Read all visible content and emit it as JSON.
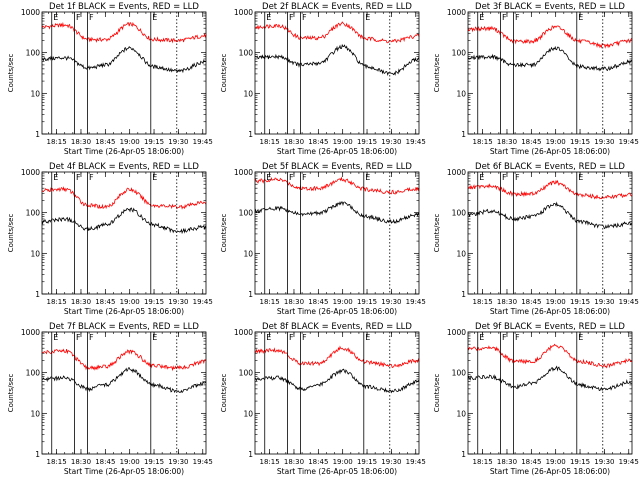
{
  "window": {
    "background": "#ffffff"
  },
  "style": {
    "events_color": "#000000",
    "lld_color": "#ff0000",
    "marker_color": "#000000"
  },
  "chart_data": [
    {
      "type": "line",
      "title": "Det 1f BLACK = Events, RED = LLD",
      "xlabel": "Start Time (26-Apr-05 18:06:00)",
      "ylabel": "Counts/sec",
      "x_ticks": [
        "18:15",
        "18:30",
        "18:45",
        "19:00",
        "19:15",
        "19:30",
        "19:45"
      ],
      "y_ticks": [
        "1",
        "10",
        "100",
        "1000"
      ],
      "y_scale": "log",
      "ylim": [
        1,
        1000
      ],
      "markers": [
        {
          "x": "18:12",
          "label": "E",
          "style": "solid"
        },
        {
          "x": "18:26",
          "label": "F",
          "style": "solid"
        },
        {
          "x": "18:34",
          "label": "F",
          "style": "solid"
        },
        {
          "x": "19:13",
          "label": "E",
          "style": "solid"
        },
        {
          "x": "19:29",
          "label": "",
          "style": "dotted"
        }
      ],
      "series": [
        {
          "name": "LLD",
          "color": "red",
          "x": [
            "18:06",
            "18:20",
            "18:35",
            "18:45",
            "19:00",
            "19:15",
            "19:30",
            "19:47"
          ],
          "values": [
            430,
            480,
            210,
            210,
            500,
            210,
            200,
            260
          ]
        },
        {
          "name": "Events",
          "color": "black",
          "x": [
            "18:06",
            "18:20",
            "18:35",
            "18:45",
            "19:00",
            "19:15",
            "19:30",
            "19:47"
          ],
          "values": [
            70,
            75,
            42,
            50,
            130,
            45,
            35,
            60
          ]
        }
      ]
    },
    {
      "type": "line",
      "title": "Det 2f BLACK = Events, RED = LLD",
      "xlabel": "Start Time (26-Apr-05 18:06:00)",
      "ylabel": "Counts/sec",
      "x_ticks": [
        "18:15",
        "18:30",
        "18:45",
        "19:00",
        "19:15",
        "19:30",
        "19:45"
      ],
      "y_ticks": [
        "1",
        "10",
        "100",
        "1000"
      ],
      "y_scale": "log",
      "ylim": [
        1,
        1000
      ],
      "markers": [
        {
          "x": "18:12",
          "label": "E",
          "style": "solid"
        },
        {
          "x": "18:26",
          "label": "F",
          "style": "solid"
        },
        {
          "x": "18:34",
          "label": "F",
          "style": "solid"
        },
        {
          "x": "19:13",
          "label": "E",
          "style": "solid"
        },
        {
          "x": "19:29",
          "label": "",
          "style": "dotted"
        }
      ],
      "series": [
        {
          "name": "LLD",
          "color": "red",
          "x": [
            "18:06",
            "18:20",
            "18:35",
            "18:45",
            "19:00",
            "19:15",
            "19:30",
            "19:47"
          ],
          "values": [
            420,
            470,
            230,
            230,
            520,
            220,
            190,
            260
          ]
        },
        {
          "name": "Events",
          "color": "black",
          "x": [
            "18:06",
            "18:20",
            "18:35",
            "18:45",
            "19:00",
            "19:15",
            "19:30",
            "19:47"
          ],
          "values": [
            75,
            80,
            50,
            55,
            140,
            45,
            30,
            70
          ]
        }
      ]
    },
    {
      "type": "line",
      "title": "Det 3f BLACK = Events, RED = LLD",
      "xlabel": "Start Time (26-Apr-05 18:06:00)",
      "ylabel": "Counts/sec",
      "x_ticks": [
        "18:15",
        "18:30",
        "18:45",
        "19:00",
        "19:15",
        "19:30",
        "19:45"
      ],
      "y_ticks": [
        "1",
        "10",
        "100",
        "1000"
      ],
      "y_scale": "log",
      "ylim": [
        1,
        1000
      ],
      "markers": [
        {
          "x": "18:12",
          "label": "E",
          "style": "solid"
        },
        {
          "x": "18:26",
          "label": "F",
          "style": "solid"
        },
        {
          "x": "18:34",
          "label": "F",
          "style": "solid"
        },
        {
          "x": "19:13",
          "label": "E",
          "style": "solid"
        },
        {
          "x": "19:29",
          "label": "",
          "style": "dotted"
        }
      ],
      "series": [
        {
          "name": "LLD",
          "color": "red",
          "x": [
            "18:06",
            "18:20",
            "18:35",
            "18:45",
            "19:00",
            "19:15",
            "19:30",
            "19:47"
          ],
          "values": [
            380,
            400,
            190,
            190,
            430,
            190,
            150,
            200
          ]
        },
        {
          "name": "Events",
          "color": "black",
          "x": [
            "18:06",
            "18:20",
            "18:35",
            "18:45",
            "19:00",
            "19:15",
            "19:30",
            "19:47"
          ],
          "values": [
            75,
            80,
            50,
            50,
            130,
            45,
            40,
            60
          ]
        }
      ]
    },
    {
      "type": "line",
      "title": "Det 4f BLACK = Events, RED = LLD",
      "xlabel": "Start Time (26-Apr-05 18:06:00)",
      "ylabel": "Counts/sec",
      "x_ticks": [
        "18:15",
        "18:30",
        "18:45",
        "19:00",
        "19:15",
        "19:30",
        "19:45"
      ],
      "y_ticks": [
        "1",
        "10",
        "100",
        "1000"
      ],
      "y_scale": "log",
      "ylim": [
        1,
        1000
      ],
      "markers": [
        {
          "x": "18:12",
          "label": "E",
          "style": "solid"
        },
        {
          "x": "18:26",
          "label": "F",
          "style": "solid"
        },
        {
          "x": "18:34",
          "label": "F",
          "style": "solid"
        },
        {
          "x": "19:13",
          "label": "E",
          "style": "solid"
        },
        {
          "x": "19:29",
          "label": "",
          "style": "dotted"
        }
      ],
      "series": [
        {
          "name": "LLD",
          "color": "red",
          "x": [
            "18:06",
            "18:20",
            "18:35",
            "18:45",
            "19:00",
            "19:15",
            "19:30",
            "19:47"
          ],
          "values": [
            350,
            380,
            150,
            140,
            370,
            150,
            140,
            180
          ]
        },
        {
          "name": "Events",
          "color": "black",
          "x": [
            "18:06",
            "18:20",
            "18:35",
            "18:45",
            "19:00",
            "19:15",
            "19:30",
            "19:47"
          ],
          "values": [
            60,
            70,
            40,
            50,
            120,
            50,
            35,
            45
          ]
        }
      ]
    },
    {
      "type": "line",
      "title": "Det 5f BLACK = Events, RED = LLD",
      "xlabel": "Start Time (26-Apr-05 18:06:00)",
      "ylabel": "Counts/sec",
      "x_ticks": [
        "18:15",
        "18:30",
        "18:45",
        "19:00",
        "19:15",
        "19:30",
        "19:45"
      ],
      "y_ticks": [
        "1",
        "10",
        "100",
        "1000"
      ],
      "y_scale": "log",
      "ylim": [
        1,
        1000
      ],
      "markers": [
        {
          "x": "18:12",
          "label": "E",
          "style": "solid"
        },
        {
          "x": "18:26",
          "label": "F",
          "style": "solid"
        },
        {
          "x": "18:34",
          "label": "F",
          "style": "solid"
        },
        {
          "x": "19:13",
          "label": "E",
          "style": "solid"
        },
        {
          "x": "19:29",
          "label": "",
          "style": "dotted"
        }
      ],
      "series": [
        {
          "name": "LLD",
          "color": "red",
          "x": [
            "18:06",
            "18:20",
            "18:35",
            "18:45",
            "19:00",
            "19:15",
            "19:30",
            "19:47"
          ],
          "values": [
            600,
            650,
            400,
            400,
            650,
            370,
            320,
            400
          ]
        },
        {
          "name": "Events",
          "color": "black",
          "x": [
            "18:06",
            "18:20",
            "18:35",
            "18:45",
            "19:00",
            "19:15",
            "19:30",
            "19:47"
          ],
          "values": [
            110,
            130,
            90,
            100,
            170,
            80,
            60,
            90
          ]
        }
      ]
    },
    {
      "type": "line",
      "title": "Det 6f BLACK = Events, RED = LLD",
      "xlabel": "Start Time (26-Apr-05 18:06:00)",
      "ylabel": "Counts/sec",
      "x_ticks": [
        "18:15",
        "18:30",
        "18:45",
        "19:00",
        "19:15",
        "19:30",
        "19:45"
      ],
      "y_ticks": [
        "1",
        "10",
        "100",
        "1000"
      ],
      "y_scale": "log",
      "ylim": [
        1,
        1000
      ],
      "markers": [
        {
          "x": "18:12",
          "label": "E",
          "style": "solid"
        },
        {
          "x": "18:26",
          "label": "F",
          "style": "solid"
        },
        {
          "x": "18:34",
          "label": "F",
          "style": "solid"
        },
        {
          "x": "19:13",
          "label": "E",
          "style": "solid"
        },
        {
          "x": "19:29",
          "label": "",
          "style": "dotted"
        }
      ],
      "series": [
        {
          "name": "LLD",
          "color": "red",
          "x": [
            "18:06",
            "18:20",
            "18:35",
            "18:45",
            "19:00",
            "19:15",
            "19:30",
            "19:47"
          ],
          "values": [
            420,
            450,
            290,
            290,
            550,
            270,
            240,
            280
          ]
        },
        {
          "name": "Events",
          "color": "black",
          "x": [
            "18:06",
            "18:20",
            "18:35",
            "18:45",
            "19:00",
            "19:15",
            "19:30",
            "19:47"
          ],
          "values": [
            90,
            110,
            70,
            80,
            160,
            60,
            45,
            55
          ]
        }
      ]
    },
    {
      "type": "line",
      "title": "Det 7f BLACK = Events, RED = LLD",
      "xlabel": "Start Time (26-Apr-05 18:06:00)",
      "ylabel": "Counts/sec",
      "x_ticks": [
        "18:15",
        "18:30",
        "18:45",
        "19:00",
        "19:15",
        "19:30",
        "19:45"
      ],
      "y_ticks": [
        "1",
        "10",
        "100",
        "1000"
      ],
      "y_scale": "log",
      "ylim": [
        1,
        1000
      ],
      "markers": [
        {
          "x": "18:12",
          "label": "E",
          "style": "solid"
        },
        {
          "x": "18:26",
          "label": "F",
          "style": "solid"
        },
        {
          "x": "18:34",
          "label": "F",
          "style": "solid"
        },
        {
          "x": "19:13",
          "label": "E",
          "style": "solid"
        },
        {
          "x": "19:29",
          "label": "",
          "style": "dotted"
        }
      ],
      "series": [
        {
          "name": "LLD",
          "color": "red",
          "x": [
            "18:06",
            "18:20",
            "18:35",
            "18:45",
            "19:00",
            "19:15",
            "19:30",
            "19:47"
          ],
          "values": [
            320,
            350,
            130,
            140,
            330,
            150,
            130,
            190
          ]
        },
        {
          "name": "Events",
          "color": "black",
          "x": [
            "18:06",
            "18:20",
            "18:35",
            "18:45",
            "19:00",
            "19:15",
            "19:30",
            "19:47"
          ],
          "values": [
            70,
            75,
            40,
            50,
            120,
            50,
            35,
            55
          ]
        }
      ]
    },
    {
      "type": "line",
      "title": "Det 8f BLACK = Events, RED = LLD",
      "xlabel": "Start Time (26-Apr-05 18:06:00)",
      "ylabel": "Counts/sec",
      "x_ticks": [
        "18:15",
        "18:30",
        "18:45",
        "19:00",
        "19:15",
        "19:30",
        "19:45"
      ],
      "y_ticks": [
        "1",
        "10",
        "100",
        "1000"
      ],
      "y_scale": "log",
      "ylim": [
        1,
        1000
      ],
      "markers": [
        {
          "x": "18:12",
          "label": "E",
          "style": "solid"
        },
        {
          "x": "18:26",
          "label": "F",
          "style": "solid"
        },
        {
          "x": "18:34",
          "label": "F",
          "style": "solid"
        },
        {
          "x": "19:13",
          "label": "E",
          "style": "solid"
        },
        {
          "x": "19:29",
          "label": "",
          "style": "dotted"
        }
      ],
      "series": [
        {
          "name": "LLD",
          "color": "red",
          "x": [
            "18:06",
            "18:20",
            "18:35",
            "18:45",
            "19:00",
            "19:15",
            "19:30",
            "19:47"
          ],
          "values": [
            330,
            360,
            170,
            170,
            400,
            180,
            150,
            200
          ]
        },
        {
          "name": "Events",
          "color": "black",
          "x": [
            "18:06",
            "18:20",
            "18:35",
            "18:45",
            "19:00",
            "19:15",
            "19:30",
            "19:47"
          ],
          "values": [
            70,
            75,
            40,
            50,
            110,
            45,
            35,
            60
          ]
        }
      ]
    },
    {
      "type": "line",
      "title": "Det 9f BLACK = Events, RED = LLD",
      "xlabel": "Start Time (26-Apr-05 18:06:00)",
      "ylabel": "Counts/sec",
      "x_ticks": [
        "18:15",
        "18:30",
        "18:45",
        "19:00",
        "19:15",
        "19:30",
        "19:45"
      ],
      "y_ticks": [
        "1",
        "10",
        "100",
        "1000"
      ],
      "y_scale": "log",
      "ylim": [
        1,
        1000
      ],
      "markers": [
        {
          "x": "18:12",
          "label": "E",
          "style": "solid"
        },
        {
          "x": "18:26",
          "label": "F",
          "style": "solid"
        },
        {
          "x": "18:34",
          "label": "F",
          "style": "solid"
        },
        {
          "x": "19:13",
          "label": "E",
          "style": "solid"
        },
        {
          "x": "19:29",
          "label": "",
          "style": "dotted"
        }
      ],
      "series": [
        {
          "name": "LLD",
          "color": "red",
          "x": [
            "18:06",
            "18:20",
            "18:35",
            "18:45",
            "19:00",
            "19:15",
            "19:30",
            "19:47"
          ],
          "values": [
            380,
            420,
            190,
            190,
            450,
            190,
            150,
            200
          ]
        },
        {
          "name": "Events",
          "color": "black",
          "x": [
            "18:06",
            "18:20",
            "18:35",
            "18:45",
            "19:00",
            "19:15",
            "19:30",
            "19:47"
          ],
          "values": [
            75,
            80,
            45,
            55,
            130,
            50,
            40,
            60
          ]
        }
      ]
    }
  ]
}
